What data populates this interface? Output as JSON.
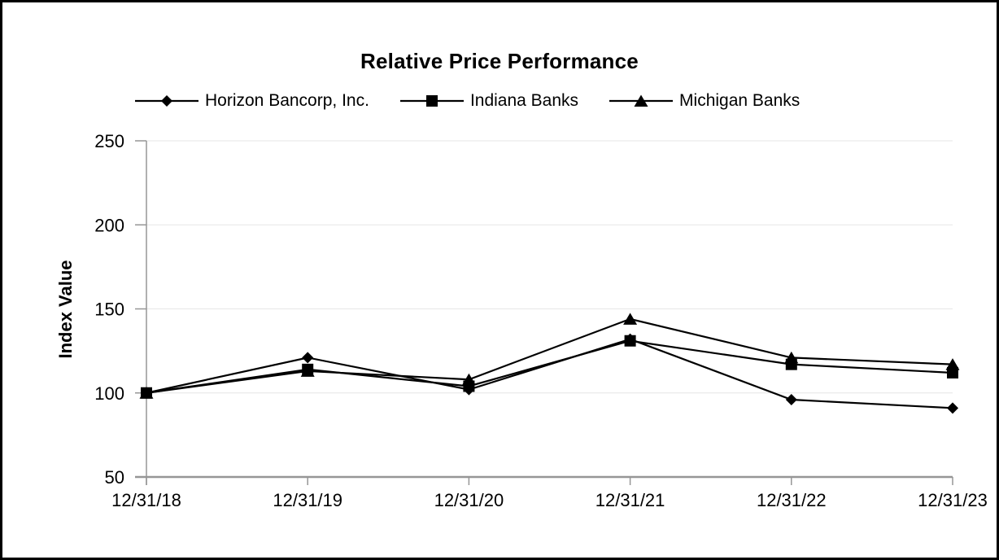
{
  "chart_data": {
    "type": "line",
    "title": "Relative Price Performance",
    "ylabel": "Index Value",
    "xlabel": "",
    "categories": [
      "12/31/18",
      "12/31/19",
      "12/31/20",
      "12/31/21",
      "12/31/22",
      "12/31/23"
    ],
    "y_ticks": [
      50,
      100,
      150,
      200,
      250
    ],
    "ylim": [
      50,
      250
    ],
    "grid": "horizontal",
    "legend_position": "top",
    "series": [
      {
        "name": "Horizon Bancorp, Inc.",
        "marker": "diamond",
        "values": [
          100,
          121,
          102,
          132,
          96,
          91
        ]
      },
      {
        "name": "Indiana Banks",
        "marker": "square",
        "values": [
          100,
          114,
          104,
          131,
          117,
          112
        ]
      },
      {
        "name": "Michigan Banks",
        "marker": "triangle",
        "values": [
          100,
          113,
          108,
          144,
          121,
          117
        ]
      }
    ],
    "colors": {
      "series": "#000000",
      "gridline": "#e6e6e6",
      "axis": "#969696",
      "text": "#000000"
    }
  }
}
